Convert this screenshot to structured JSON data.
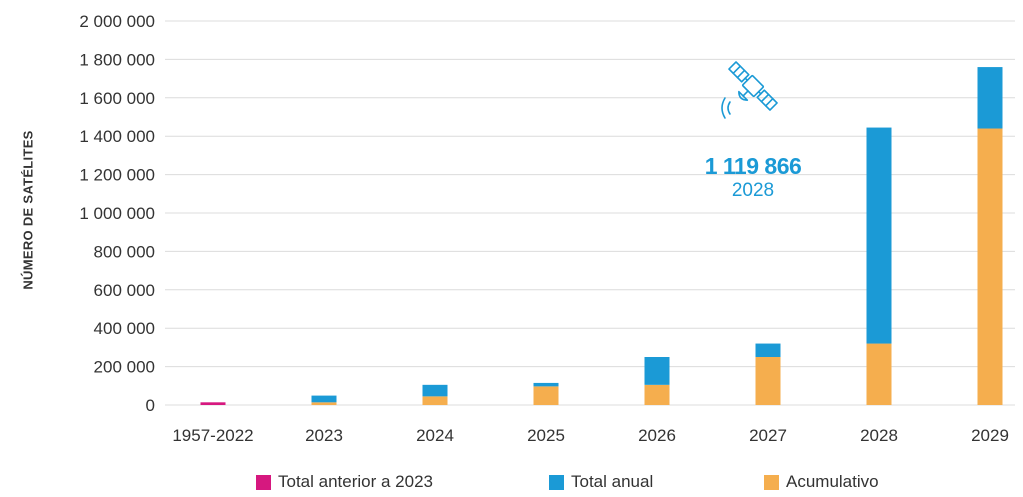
{
  "chart_data": {
    "type": "bar",
    "stacked": true,
    "ylabel": "NÚMERO DE SATÉLITES",
    "ylim": [
      0,
      2000000
    ],
    "yticks": [
      0,
      200000,
      400000,
      600000,
      800000,
      1000000,
      1200000,
      1400000,
      1600000,
      1800000,
      2000000
    ],
    "ytick_labels": [
      "0",
      "200 000",
      "400 000",
      "600 000",
      "800 000",
      "1 000 000",
      "1 200 000",
      "1 400 000",
      "1 600 000",
      "1 800 000",
      "2 000 000"
    ],
    "categories": [
      "1957-2022",
      "2023",
      "2024",
      "2025",
      "2026",
      "2027",
      "2028",
      "2029"
    ],
    "series": [
      {
        "name": "Total anterior a 2023",
        "color": "#d6187f",
        "values": [
          14000,
          0,
          0,
          0,
          0,
          0,
          0,
          0
        ]
      },
      {
        "name": "Acumulativo",
        "color": "#f5ae4e",
        "values": [
          0,
          14000,
          45000,
          97000,
          105000,
          250000,
          320000,
          1440000
        ]
      },
      {
        "name": "Total anual",
        "color": "#1b9ad6",
        "values": [
          0,
          35000,
          60000,
          18000,
          145000,
          70000,
          1125000,
          320000
        ]
      }
    ],
    "grid": true,
    "legend_position": "bottom",
    "annotation": {
      "value": "1 119 866",
      "label": "2028",
      "icon": "satellite-icon"
    }
  },
  "legend": [
    {
      "label": "Total anterior a 2023",
      "color": "#d6187f"
    },
    {
      "label": "Total anual",
      "color": "#1b9ad6"
    },
    {
      "label": "Acumulativo",
      "color": "#f5ae4e"
    }
  ]
}
